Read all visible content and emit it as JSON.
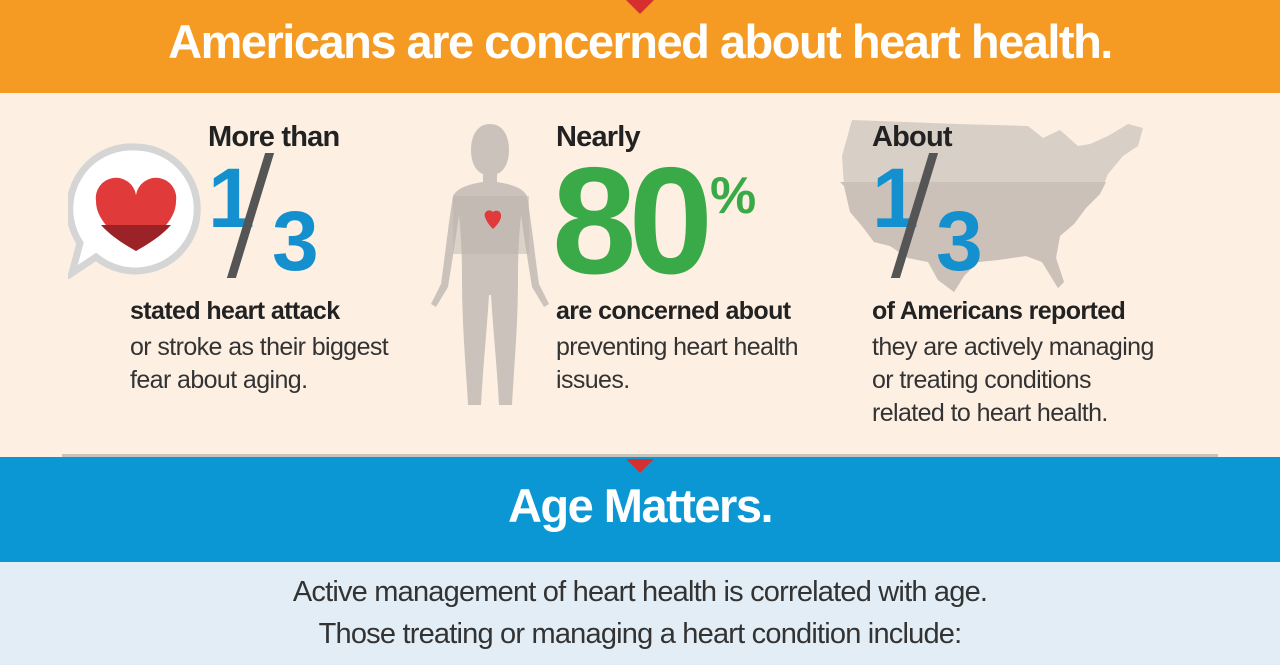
{
  "header": {
    "title": "Americans are concerned about heart health."
  },
  "stats": [
    {
      "lead": "More than",
      "numerator": "1",
      "denominator": "3",
      "bold_text": "stated heart attack",
      "lines": [
        "or stroke as their biggest",
        "fear about aging."
      ],
      "icon": "heart-speech-bubble-icon"
    },
    {
      "lead": "Nearly",
      "value": "80",
      "unit": "%",
      "bold_text": "are concerned about",
      "lines": [
        "preventing heart health",
        "issues."
      ],
      "icon": "human-body-heart-icon"
    },
    {
      "lead": "About",
      "numerator": "1",
      "denominator": "3",
      "bold_text": "of Americans reported",
      "lines": [
        "they are actively managing",
        "or treating conditions",
        "related to heart health."
      ],
      "icon": "us-map-icon"
    }
  ],
  "section2": {
    "title": "Age Matters.",
    "lines": [
      "Active management of heart health is correlated with age.",
      "Those treating or managing a heart condition include:"
    ]
  },
  "colors": {
    "orange": "#f59a23",
    "blue": "#0a97d3",
    "green": "#3aaa49",
    "red": "#d62f2f",
    "fraction_blue": "#1590cf"
  }
}
